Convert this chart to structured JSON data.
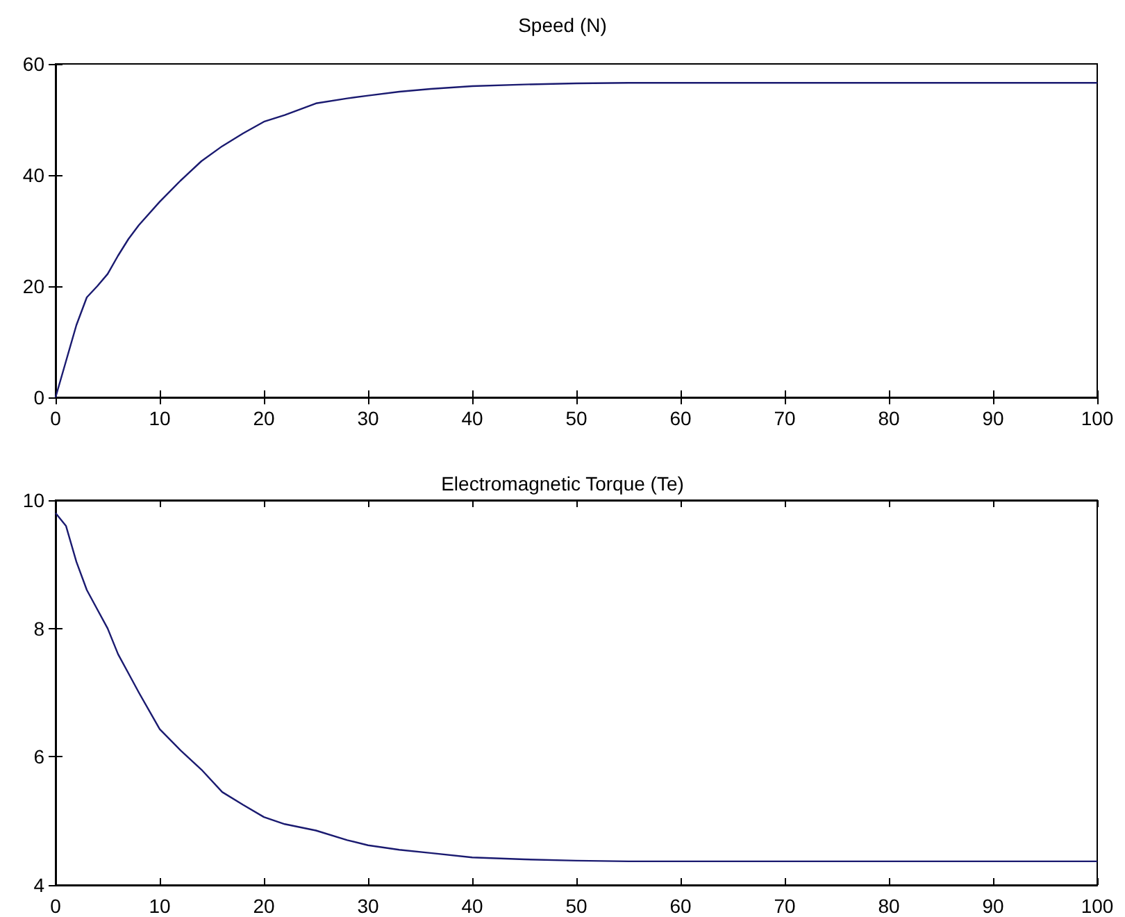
{
  "chart_data": [
    {
      "type": "line",
      "title": "Speed (N)",
      "x": [
        0,
        1,
        2,
        3,
        4,
        5,
        6,
        7,
        8,
        10,
        12,
        14,
        16,
        18,
        20,
        22,
        25,
        28,
        30,
        33,
        36,
        40,
        45,
        50,
        55,
        60,
        70,
        80,
        90,
        100
      ],
      "series": [
        {
          "color": "#1a1a70",
          "values": [
            0,
            6.5,
            13,
            18,
            20,
            22.2,
            25.5,
            28.5,
            31,
            35.2,
            39,
            42.5,
            45.2,
            47.5,
            49.6,
            50.8,
            52.9,
            53.8,
            54.3,
            55,
            55.5,
            56,
            56.3,
            56.5,
            56.6,
            56.6,
            56.6,
            56.6,
            56.6,
            56.6
          ]
        }
      ],
      "xlim": [
        0,
        100
      ],
      "xticks": [
        0,
        10,
        20,
        30,
        40,
        50,
        60,
        70,
        80,
        90,
        100
      ],
      "ylim": [
        0,
        60
      ],
      "yticks": [
        0,
        20,
        40,
        60
      ],
      "grid": false,
      "marker": "none",
      "line_style": "solid"
    },
    {
      "type": "line",
      "title": "Electromagnetic Torque (Te)",
      "x": [
        0,
        1,
        2,
        3,
        4,
        5,
        6,
        7,
        8,
        10,
        12,
        14,
        16,
        18,
        20,
        22,
        25,
        28,
        30,
        33,
        36,
        40,
        45,
        50,
        55,
        60,
        70,
        80,
        90,
        100
      ],
      "series": [
        {
          "color": "#1a1a70",
          "values": [
            9.8,
            9.6,
            9.04,
            8.6,
            8.3,
            8,
            7.6,
            7.3,
            7,
            6.43,
            6.1,
            5.8,
            5.45,
            5.25,
            5.06,
            4.95,
            4.85,
            4.7,
            4.62,
            4.55,
            4.5,
            4.43,
            4.4,
            4.38,
            4.37,
            4.37,
            4.37,
            4.37,
            4.37,
            4.37
          ]
        }
      ],
      "xlim": [
        0,
        100
      ],
      "xticks": [
        0,
        10,
        20,
        30,
        40,
        50,
        60,
        70,
        80,
        90,
        100
      ],
      "ylim": [
        4,
        10
      ],
      "yticks": [
        4,
        6,
        8,
        10
      ],
      "grid": false,
      "marker": "none",
      "line_style": "solid"
    }
  ]
}
